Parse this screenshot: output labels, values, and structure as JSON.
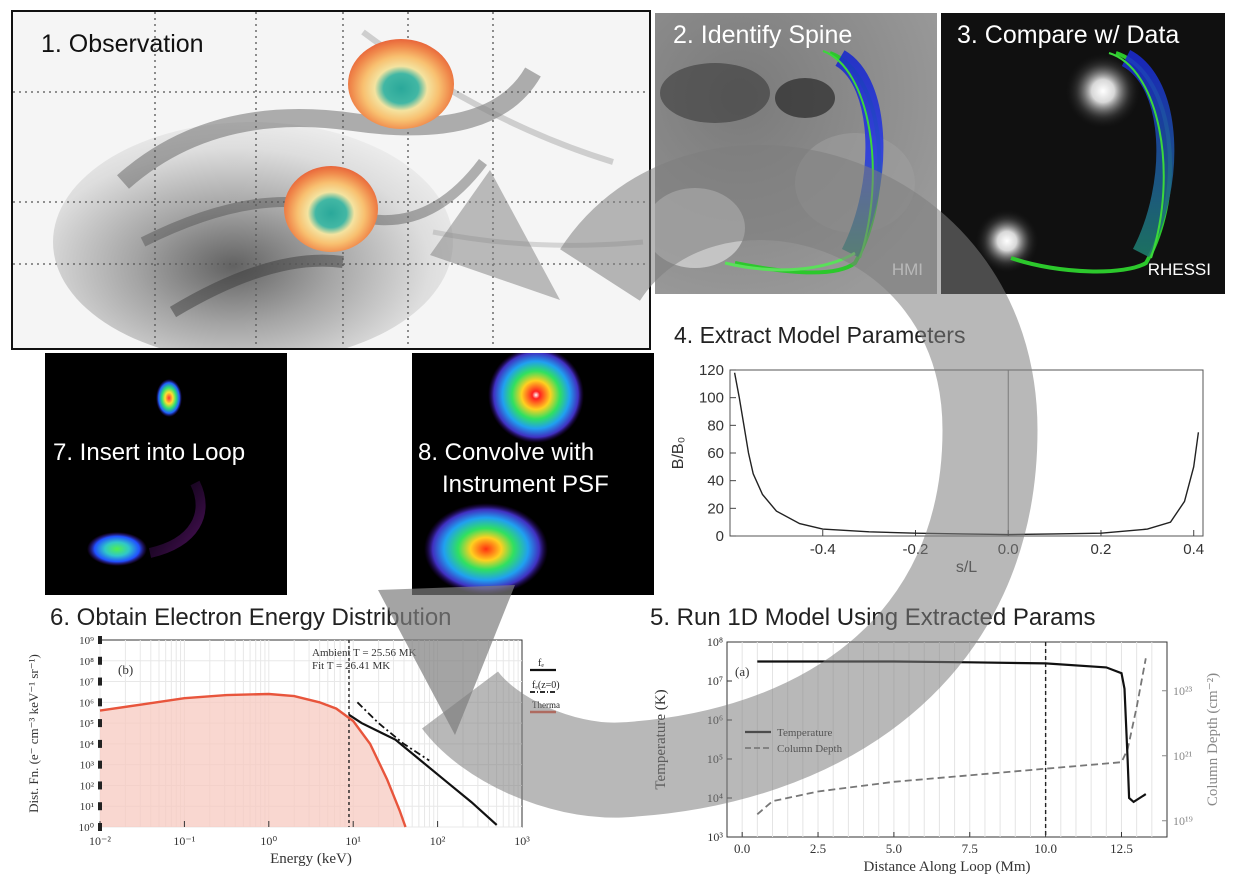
{
  "panels": {
    "p1": {
      "title": "1. Observation"
    },
    "p2": {
      "title": "2. Identify Spine",
      "tag": "HMI"
    },
    "p3": {
      "title": "3. Compare w/ Data",
      "tag": "RHESSI"
    },
    "p4": {
      "title": "4. Extract Model Parameters"
    },
    "p5": {
      "title": "5. Run 1D Model Using Extracted Params"
    },
    "p6": {
      "title": "6. Obtain Electron Energy Distribution"
    },
    "p7": {
      "title": "7. Insert into Loop"
    },
    "p8": {
      "title_line1": "8. Convolve with",
      "title_line2": "Instrument PSF"
    }
  },
  "colors": {
    "thermal_fit": "#e8553c",
    "thermal_fill": "#f7c9c0",
    "arrow": "#8a8a8a"
  },
  "chart_data": [
    {
      "id": "model-parameters",
      "type": "line",
      "xlabel": "s/L",
      "ylabel": "B/B₀",
      "xlim": [
        -0.6,
        0.42
      ],
      "ylim": [
        0,
        120
      ],
      "xticks": [
        "-0.4",
        "-0.2",
        "0.0",
        "0.2",
        "0.4"
      ],
      "yticks": [
        "0",
        "20",
        "40",
        "60",
        "80",
        "100",
        "120"
      ],
      "series": [
        {
          "x": [
            -0.59,
            -0.58,
            -0.57,
            -0.56,
            -0.55,
            -0.53,
            -0.5,
            -0.45,
            -0.4,
            -0.3,
            -0.2,
            -0.1,
            0.0,
            0.1,
            0.2,
            0.3,
            0.35,
            0.38,
            0.4,
            0.41
          ],
          "y": [
            118,
            100,
            80,
            60,
            45,
            30,
            18,
            9,
            5,
            3,
            2,
            1.5,
            1,
            1.5,
            2,
            5,
            10,
            25,
            50,
            75
          ]
        }
      ],
      "vline": 0.0
    },
    {
      "id": "run-1d-model",
      "type": "line",
      "panel_label": "(a)",
      "xlabel": "Distance Along Loop (Mm)",
      "ylabel": "Temperature (K)",
      "ylabel_right": "Column Depth (cm⁻²)",
      "xticks": [
        "0.0",
        "2.5",
        "5.0",
        "7.5",
        "10.0",
        "12.5"
      ],
      "xlim": [
        -0.5,
        14
      ],
      "yticks_left": [
        "10³",
        "10⁴",
        "10⁵",
        "10⁶",
        "10⁷",
        "10⁸"
      ],
      "yticks_right": [
        "10¹⁹",
        "10²¹",
        "10²³"
      ],
      "legend": [
        "Temperature",
        "Column Depth"
      ],
      "vline": 10.0,
      "series": [
        {
          "name": "Temperature",
          "x": [
            0.5,
            2.5,
            5.0,
            7.5,
            10.0,
            12.0,
            12.5,
            12.6,
            12.7,
            12.75,
            12.9,
            13.1,
            13.3
          ],
          "y": [
            7.5,
            7.5,
            7.5,
            7.48,
            7.45,
            7.35,
            7.2,
            6.8,
            5.0,
            4.0,
            3.9,
            4.0,
            4.1
          ]
        },
        {
          "name": "Column Depth",
          "x": [
            0.5,
            1.0,
            2.5,
            5.0,
            7.5,
            10.0,
            12.5,
            12.7,
            13.0,
            13.3
          ],
          "y": [
            19.2,
            19.6,
            19.9,
            20.2,
            20.4,
            20.6,
            20.8,
            21.2,
            22.5,
            24
          ]
        }
      ]
    },
    {
      "id": "electron-energy",
      "type": "line",
      "panel_label": "(b)",
      "xlabel": "Energy (keV)",
      "ylabel": "Dist. Fn. (e⁻ cm⁻³ keV⁻¹ sr⁻¹)",
      "xscale": "log",
      "yscale": "log",
      "xlim": [
        -2,
        3
      ],
      "ylim": [
        0,
        9
      ],
      "xticks": [
        "10⁻²",
        "10⁻¹",
        "10⁰",
        "10¹",
        "10²",
        "10³"
      ],
      "yticks": [
        "10⁰",
        "10¹",
        "10²",
        "10³",
        "10⁴",
        "10⁵",
        "10⁶",
        "10⁷",
        "10⁸",
        "10⁹"
      ],
      "annotations": [
        "Ambient T = 25.56 MK",
        "Fit T = 26.41 MK"
      ],
      "legend": [
        "fₑ",
        "fₑ(z=0)",
        "Thermal Fit"
      ],
      "vline": 0.95,
      "series": [
        {
          "name": "fₑ",
          "x": [
            0.95,
            1.1,
            1.3,
            1.5,
            1.8,
            2.1,
            2.4,
            2.7
          ],
          "y": [
            5.4,
            5.0,
            4.6,
            4.2,
            3.2,
            2.2,
            1.2,
            0.1
          ]
        },
        {
          "name": "fₑ(z=0)",
          "x": [
            1.05,
            1.3,
            1.6,
            1.9
          ],
          "y": [
            6.0,
            5.0,
            4.0,
            3.2
          ]
        },
        {
          "name": "Thermal Fit",
          "x": [
            -2,
            -1.5,
            -1.0,
            -0.5,
            0.0,
            0.3,
            0.6,
            0.8,
            1.0,
            1.2,
            1.4,
            1.55,
            1.62
          ],
          "y": [
            5.6,
            5.9,
            6.2,
            6.35,
            6.4,
            6.3,
            6.0,
            5.7,
            5.1,
            4.0,
            2.3,
            0.8,
            0.0
          ]
        }
      ]
    }
  ]
}
